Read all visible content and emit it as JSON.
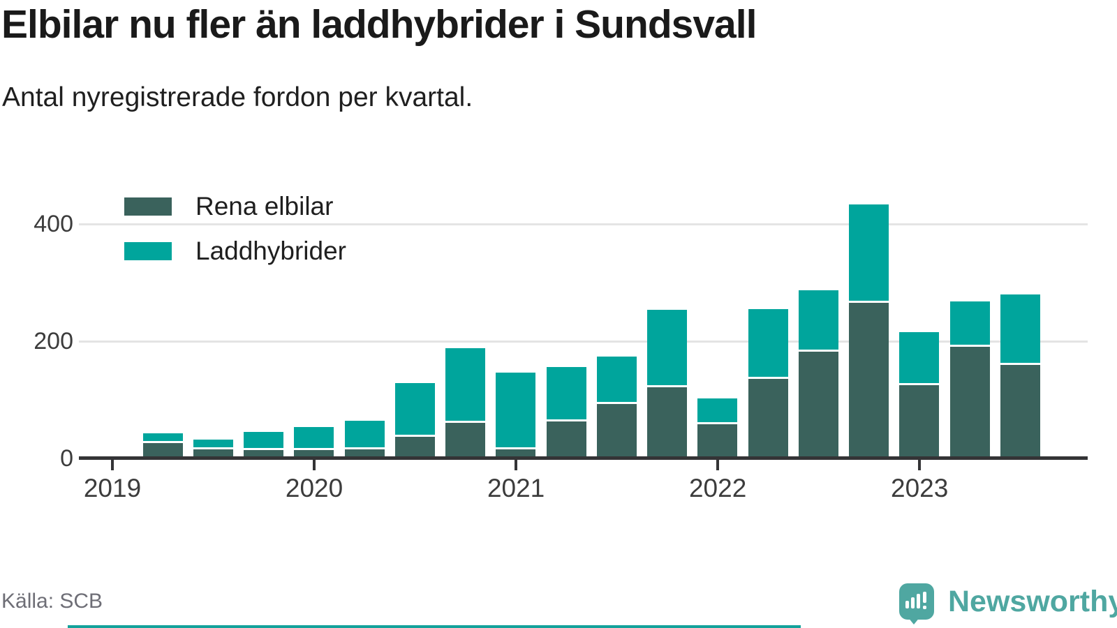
{
  "header": {
    "title": "Elbilar nu fler än laddhybrider i Sundsvall",
    "subtitle": "Antal nyregistrerade fordon per kvartal."
  },
  "legend": {
    "items": [
      {
        "label": "Rena elbilar",
        "color": "#3a625c"
      },
      {
        "label": "Laddhybrider",
        "color": "#00a59c"
      }
    ]
  },
  "footer": {
    "source": "Källa: SCB",
    "brand": "Newsworthy"
  },
  "colors": {
    "elbilar": "#3a625c",
    "laddhybrider": "#00a59c",
    "axis": "#343436",
    "grid": "#e4e4e4",
    "brand_teal": "#4fa7a1"
  },
  "chart_data": {
    "type": "bar",
    "stacked": true,
    "title": "Elbilar nu fler än laddhybrider i Sundsvall",
    "subtitle": "Antal nyregistrerade fordon per kvartal.",
    "categories": [
      "2019 K2",
      "2019 K3",
      "2019 K4",
      "2020 K1",
      "2020 K2",
      "2020 K3",
      "2020 K4",
      "2021 K1",
      "2021 K2",
      "2021 K3",
      "2021 K4",
      "2022 K1",
      "2022 K2",
      "2022 K3",
      "2022 K4",
      "2023 K1",
      "2023 K2",
      "2023 K3"
    ],
    "series": [
      {
        "name": "Rena elbilar",
        "color": "#3a625c",
        "values": [
          26,
          16,
          14,
          14,
          16,
          37,
          61,
          16,
          63,
          93,
          121,
          58,
          136,
          182,
          265,
          125,
          190,
          159
        ]
      },
      {
        "name": "Laddhybrider",
        "color": "#00a59c",
        "values": [
          17,
          16,
          31,
          39,
          48,
          92,
          127,
          130,
          93,
          81,
          132,
          44,
          118,
          104,
          168,
          90,
          78,
          120
        ]
      }
    ],
    "x_tick_labels": [
      "2019",
      "2020",
      "2021",
      "2022",
      "2023"
    ],
    "y_ticks": [
      0,
      200,
      400
    ],
    "ylim": [
      0,
      450
    ],
    "grid": "horizontal",
    "legend_position": "top-left"
  }
}
